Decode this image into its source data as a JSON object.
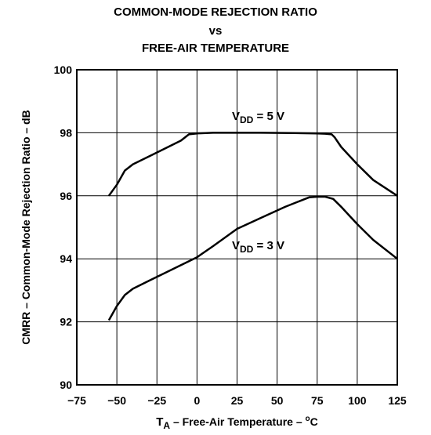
{
  "title_lines": [
    "COMMON-MODE REJECTION RATIO",
    "vs",
    "FREE-AIR TEMPERATURE"
  ],
  "chart_data": {
    "type": "line",
    "xlabel": {
      "main": "T",
      "sub": "A",
      "rest": " – Free-Air Temperature  – ",
      "unit_sup": "o",
      "unit": "C"
    },
    "ylabel": "CMRR – Common-Mode Rejection Ratio – dB",
    "xlim": [
      -75,
      125
    ],
    "ylim": [
      90,
      100
    ],
    "xticks": [
      -75,
      -50,
      -25,
      0,
      25,
      50,
      75,
      100,
      125
    ],
    "xtick_labels": [
      "−75",
      "−50",
      "−25",
      "0",
      "25",
      "50",
      "75",
      "100",
      "125"
    ],
    "yticks": [
      90,
      92,
      94,
      96,
      98,
      100
    ],
    "ytick_labels": [
      "90",
      "92",
      "94",
      "96",
      "98",
      "100"
    ],
    "grid": true,
    "series": [
      {
        "name": "VDD = 5 V",
        "label_main": "V",
        "label_sub": "DD",
        "label_rest": " = 5 V",
        "x": [
          -55,
          -50,
          -45,
          -40,
          -30,
          -20,
          -10,
          -5,
          0,
          10,
          25,
          40,
          60,
          75,
          80,
          84,
          86,
          90,
          100,
          110,
          125
        ],
        "y": [
          96.0,
          96.35,
          96.8,
          97.0,
          97.25,
          97.5,
          97.75,
          97.95,
          97.98,
          98.0,
          98.0,
          98.0,
          97.99,
          97.98,
          97.97,
          97.95,
          97.85,
          97.55,
          97.0,
          96.5,
          96.0
        ]
      },
      {
        "name": "VDD = 3 V",
        "label_main": "V",
        "label_sub": "DD",
        "label_rest": " = 3 V",
        "x": [
          -55,
          -50,
          -45,
          -40,
          -30,
          -20,
          -10,
          0,
          10,
          25,
          40,
          55,
          65,
          70,
          75,
          80,
          85,
          90,
          100,
          110,
          125
        ],
        "y": [
          92.05,
          92.5,
          92.85,
          93.05,
          93.3,
          93.55,
          93.8,
          94.05,
          94.4,
          94.95,
          95.3,
          95.65,
          95.85,
          95.95,
          95.97,
          95.97,
          95.9,
          95.65,
          95.1,
          94.6,
          94.0
        ]
      }
    ]
  }
}
